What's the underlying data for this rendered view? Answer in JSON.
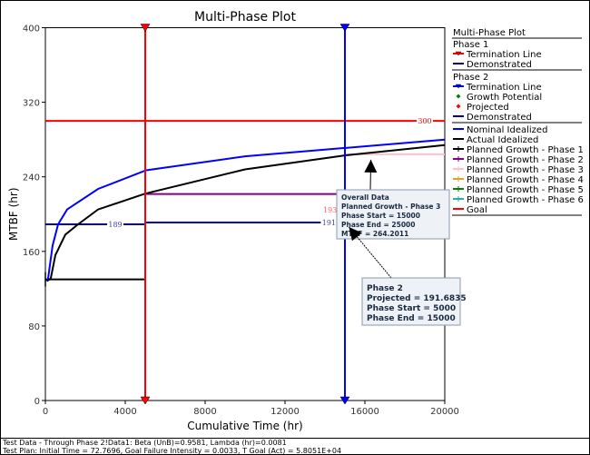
{
  "chart_data": {
    "type": "line",
    "title": "Multi-Phase Plot",
    "xlabel": "Cumulative Time (hr)",
    "ylabel": "MTBF (hr)",
    "xlim": [
      0,
      20000
    ],
    "ylim": [
      0,
      400
    ],
    "xticks": [
      0,
      4000,
      8000,
      12000,
      16000,
      20000
    ],
    "yticks": [
      0,
      80,
      160,
      240,
      320,
      400
    ],
    "grid": false,
    "legend_placement": "right",
    "legend": {
      "title": "Multi-Phase Plot",
      "groups": [
        {
          "header": "Phase 1",
          "items": [
            {
              "label": "Termination Line",
              "color": "#ff0000",
              "marker": "triangle-down"
            },
            {
              "label": "Demonstrated",
              "color": "#000080"
            }
          ]
        },
        {
          "header": "Phase 2",
          "items": [
            {
              "label": "Termination Line",
              "color": "#0000ff",
              "marker": "triangle-down"
            },
            {
              "label": "Growth Potential",
              "color": "#008000",
              "marker": "diamond"
            },
            {
              "label": "Projected",
              "color": "#ff0000",
              "marker": "diamond"
            },
            {
              "label": "Demonstrated",
              "color": "#000080"
            }
          ]
        },
        {
          "header": "",
          "items": [
            {
              "label": "Nominal Idealized",
              "color": "#0000ff"
            },
            {
              "label": "Actual Idealized",
              "color": "#000000"
            },
            {
              "label": "Planned Growth - Phase 1",
              "color": "#000000",
              "marker": "tick"
            },
            {
              "label": "Planned Growth - Phase 2",
              "color": "#800080",
              "marker": "tick"
            },
            {
              "label": "Planned Growth - Phase 3",
              "color": "#ffc0cb",
              "marker": "tick"
            },
            {
              "label": "Planned Growth - Phase 4",
              "color": "#daa520",
              "marker": "tick"
            },
            {
              "label": "Planned Growth - Phase 5",
              "color": "#008000",
              "marker": "tick"
            },
            {
              "label": "Planned Growth - Phase 6",
              "color": "#20b2aa",
              "marker": "tick"
            },
            {
              "label": "Goal",
              "color": "#ff0000"
            }
          ]
        }
      ]
    },
    "curves": [
      {
        "name": "Nominal Idealized",
        "color": "#0000ff",
        "x": [
          72.77,
          136,
          360,
          636,
          1090,
          2640,
          5045,
          10000,
          15000,
          20000
        ],
        "y": [
          128,
          131,
          166,
          189,
          205,
          227,
          247,
          262,
          271,
          280
        ]
      },
      {
        "name": "Actual Idealized",
        "color": "#000000",
        "x": [
          72.77,
          270,
          500,
          1000,
          1636,
          2640,
          5000,
          10000,
          15000,
          20000
        ],
        "y": [
          128,
          131,
          156,
          178,
          189,
          205,
          222,
          248,
          263,
          274
        ]
      }
    ],
    "segments": [
      {
        "name": "Planned Growth - Phase 1",
        "color": "#000000",
        "x": [
          0,
          5000
        ],
        "y": 130
      },
      {
        "name": "Planned Growth - Phase 2",
        "color": "#800080",
        "x": [
          5000,
          15000
        ],
        "y": 221.5
      },
      {
        "name": "Planned Growth - Phase 3",
        "color": "#ffc0cb",
        "x": [
          15000,
          20000
        ],
        "y": 264.2011
      },
      {
        "name": "Phase 1 Demonstrated",
        "color": "#000080",
        "x": [
          0,
          5000
        ],
        "y": 189,
        "label": "189"
      },
      {
        "name": "Phase 2 Demonstrated",
        "color": "#000080",
        "x": [
          5000,
          15000
        ],
        "y": 191,
        "label": "191"
      },
      {
        "name": "Goal",
        "color": "#ff0000",
        "x": [
          0,
          20000
        ],
        "y": 300,
        "label": "300"
      }
    ],
    "termination_lines": [
      {
        "name": "Phase 1 Termination Line",
        "x": 5000,
        "color": "#ff0000"
      },
      {
        "name": "Phase 2 Termination Line",
        "x": 15000,
        "color": "#0000ff"
      }
    ],
    "points": [
      {
        "name": "Growth Potential",
        "x": 15000,
        "y": 193,
        "color": "#008000",
        "label": "193"
      },
      {
        "name": "Projected",
        "x": 15000,
        "y": 191.6835,
        "color": "#ff0000"
      }
    ],
    "annotations": [
      {
        "lines": [
          "Overall Data",
          "Planned Growth - Phase 3",
          "Phase Start = 15000",
          "Phase End = 25000",
          "MTBF = 264.2011"
        ],
        "target_x": 16300,
        "target_y": 264.2011
      },
      {
        "lines": [
          "Phase 2",
          "Projected = 191.6835",
          "Phase Start = 5000",
          "Phase End = 15000"
        ],
        "target_x": 15200,
        "target_y": 190
      }
    ]
  },
  "footer": {
    "line1": "Test Data - Through Phase 2!Data1: Beta (UnB)=0.9581, Lambda (hr)=0.0081",
    "line2": "Test Plan: Initial Time = 72.7696, Goal Failure Intensity = 0.0033, T Goal (Act) = 5.8051E+04"
  }
}
